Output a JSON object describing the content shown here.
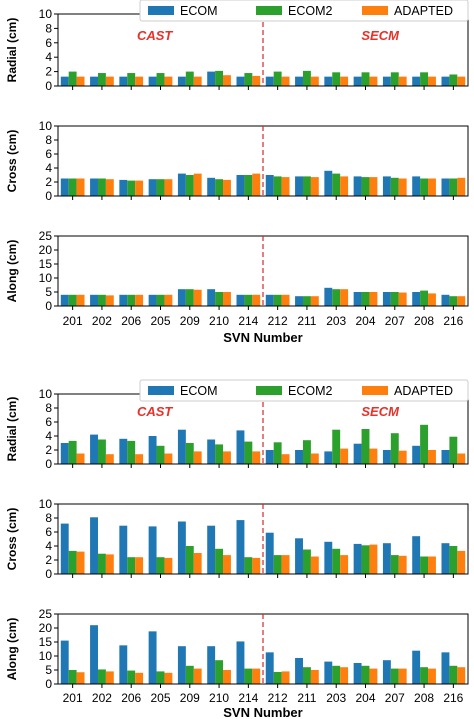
{
  "chart_data": [
    {
      "type": "bar",
      "legend": {
        "placement": "top-right",
        "entries": [
          "ECOM",
          "ECOM2",
          "ADAPTED"
        ]
      },
      "categories": [
        "201",
        "202",
        "206",
        "205",
        "209",
        "210",
        "214",
        "212",
        "211",
        "203",
        "204",
        "207",
        "208",
        "216"
      ],
      "xlabel": "SVN Number",
      "group_labels": [
        "CAST",
        "SECM"
      ],
      "colors": {
        "ECOM": "#1f77b4",
        "ECOM2": "#2ca02c",
        "ADAPTED": "#ff7f0e",
        "groups": "#e8312a",
        "divider": "#d62728"
      },
      "panels": [
        {
          "ylabel": "Radial (cm)",
          "ylim": [
            0,
            10
          ],
          "yticks": [
            0,
            2,
            4,
            6,
            8,
            10
          ],
          "series": [
            {
              "name": "ECOM",
              "values": [
                1.3,
                1.3,
                1.3,
                1.3,
                1.3,
                2.0,
                1.3,
                1.3,
                1.3,
                1.3,
                1.3,
                1.3,
                1.3,
                1.3
              ]
            },
            {
              "name": "ECOM2",
              "values": [
                2.0,
                1.8,
                1.8,
                1.8,
                2.0,
                2.1,
                1.8,
                2.0,
                2.1,
                1.9,
                1.9,
                1.9,
                1.9,
                1.6
              ]
            },
            {
              "name": "ADAPTED",
              "values": [
                1.3,
                1.3,
                1.3,
                1.3,
                1.3,
                1.5,
                1.4,
                1.3,
                1.3,
                1.3,
                1.3,
                1.3,
                1.3,
                1.3
              ]
            }
          ]
        },
        {
          "ylabel": "Cross (cm)",
          "ylim": [
            0,
            10
          ],
          "yticks": [
            0,
            2,
            4,
            6,
            8,
            10
          ],
          "series": [
            {
              "name": "ECOM",
              "values": [
                2.5,
                2.5,
                2.3,
                2.4,
                3.2,
                2.6,
                3.0,
                3.0,
                2.8,
                3.6,
                2.8,
                2.8,
                2.8,
                2.5
              ]
            },
            {
              "name": "ECOM2",
              "values": [
                2.5,
                2.5,
                2.2,
                2.4,
                3.0,
                2.4,
                3.0,
                2.8,
                2.8,
                3.2,
                2.7,
                2.6,
                2.5,
                2.5
              ]
            },
            {
              "name": "ADAPTED",
              "values": [
                2.5,
                2.4,
                2.2,
                2.4,
                3.2,
                2.3,
                3.2,
                2.7,
                2.7,
                2.8,
                2.7,
                2.5,
                2.5,
                2.6
              ]
            }
          ]
        },
        {
          "ylabel": "Along (cm)",
          "ylim": [
            0,
            25
          ],
          "yticks": [
            0,
            5,
            10,
            15,
            20,
            25
          ],
          "series": [
            {
              "name": "ECOM",
              "values": [
                4.0,
                4.0,
                4.0,
                4.0,
                6.0,
                6.0,
                4.0,
                4.0,
                3.5,
                6.5,
                5.0,
                5.0,
                5.0,
                4.0
              ]
            },
            {
              "name": "ECOM2",
              "values": [
                4.0,
                4.0,
                4.0,
                4.0,
                6.0,
                5.0,
                4.0,
                4.0,
                3.5,
                6.0,
                5.0,
                5.0,
                5.5,
                3.5
              ]
            },
            {
              "name": "ADAPTED",
              "values": [
                4.0,
                3.8,
                4.0,
                4.0,
                5.8,
                5.0,
                4.0,
                4.0,
                3.5,
                6.0,
                5.0,
                4.8,
                4.5,
                3.5
              ]
            }
          ]
        }
      ]
    },
    {
      "type": "bar",
      "legend": {
        "placement": "top",
        "entries": [
          "ECOM",
          "ECOM2",
          "ADAPTED"
        ]
      },
      "categories": [
        "201",
        "202",
        "206",
        "205",
        "209",
        "210",
        "214",
        "212",
        "211",
        "203",
        "204",
        "207",
        "208",
        "216"
      ],
      "xlabel": "SVN Number",
      "group_labels": [
        "CAST",
        "SECM"
      ],
      "colors": {
        "ECOM": "#1f77b4",
        "ECOM2": "#2ca02c",
        "ADAPTED": "#ff7f0e",
        "groups": "#e8312a",
        "divider": "#d62728"
      },
      "panels": [
        {
          "ylabel": "Radial (cm)",
          "ylim": [
            0,
            10
          ],
          "yticks": [
            0,
            2,
            4,
            6,
            8,
            10
          ],
          "series": [
            {
              "name": "ECOM",
              "values": [
                3.0,
                4.2,
                3.6,
                4.0,
                4.9,
                3.5,
                4.8,
                2.0,
                2.0,
                1.8,
                2.9,
                2.0,
                2.6,
                2.0
              ]
            },
            {
              "name": "ECOM2",
              "values": [
                3.3,
                3.5,
                3.3,
                2.6,
                3.0,
                2.8,
                3.2,
                3.1,
                3.4,
                4.9,
                5.0,
                4.4,
                5.6,
                3.9
              ]
            },
            {
              "name": "ADAPTED",
              "values": [
                1.5,
                1.4,
                1.4,
                1.5,
                1.8,
                1.8,
                1.8,
                1.4,
                1.5,
                2.2,
                2.2,
                1.9,
                2.0,
                1.5
              ]
            }
          ]
        },
        {
          "ylabel": "Cross (cm)",
          "ylim": [
            0,
            10
          ],
          "yticks": [
            0,
            2,
            4,
            6,
            8,
            10
          ],
          "series": [
            {
              "name": "ECOM",
              "values": [
                7.2,
                8.1,
                6.9,
                6.8,
                7.5,
                6.9,
                7.7,
                5.9,
                5.1,
                4.6,
                4.3,
                4.4,
                5.4,
                4.4
              ]
            },
            {
              "name": "ECOM2",
              "values": [
                3.3,
                2.9,
                2.4,
                2.4,
                4.0,
                3.6,
                2.4,
                2.7,
                3.5,
                3.6,
                4.1,
                2.7,
                2.5,
                4.0
              ]
            },
            {
              "name": "ADAPTED",
              "values": [
                3.2,
                2.8,
                2.4,
                2.3,
                3.0,
                2.7,
                2.3,
                2.7,
                2.5,
                2.7,
                4.2,
                2.6,
                2.5,
                3.3
              ]
            }
          ]
        },
        {
          "ylabel": "Along (cm)",
          "ylim": [
            0,
            25
          ],
          "yticks": [
            0,
            5,
            10,
            15,
            20,
            25
          ],
          "series": [
            {
              "name": "ECOM",
              "values": [
                15.5,
                21.0,
                13.8,
                18.8,
                13.5,
                13.5,
                15.2,
                11.3,
                9.3,
                8.0,
                7.5,
                8.5,
                11.9,
                11.3
              ]
            },
            {
              "name": "ECOM2",
              "values": [
                5.0,
                5.2,
                4.8,
                4.5,
                6.5,
                8.5,
                5.5,
                4.3,
                6.0,
                6.5,
                6.5,
                5.5,
                6.0,
                6.5
              ]
            },
            {
              "name": "ADAPTED",
              "values": [
                4.2,
                4.5,
                4.0,
                4.0,
                5.5,
                5.0,
                5.5,
                4.5,
                5.0,
                6.0,
                5.5,
                5.5,
                5.5,
                6.0
              ]
            }
          ]
        }
      ]
    }
  ]
}
